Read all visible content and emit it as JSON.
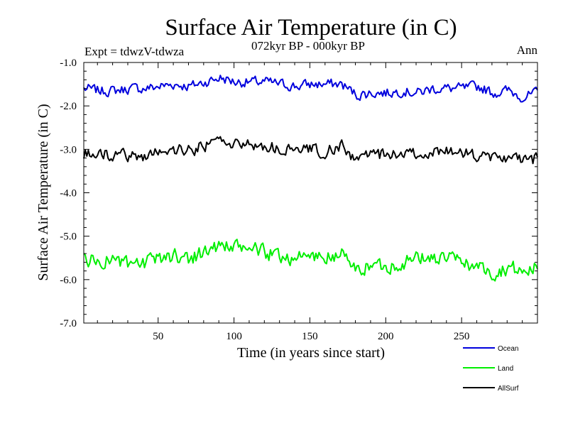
{
  "chart_data": {
    "type": "line",
    "title": "Surface Air Temperature (in C)",
    "subtitle": "072kyr BP - 000kyr BP",
    "left_label": "Expt = tdwzV-tdwza",
    "right_label": "Ann",
    "xlabel": "Time (in years since start)",
    "ylabel": "Surface Air Temperature (in C)",
    "xlim": [
      1,
      300
    ],
    "ylim": [
      -7.0,
      -1.0
    ],
    "x_ticks": [
      50,
      100,
      150,
      200,
      250
    ],
    "x_tick_labels": [
      "50",
      "100",
      "150",
      "200",
      "250"
    ],
    "y_ticks": [
      -1.0,
      -2.0,
      -3.0,
      -4.0,
      -5.0,
      -6.0,
      -7.0
    ],
    "y_tick_labels": [
      "-1.0",
      "-2.0",
      "-3.0",
      "-4.0",
      "-5.0",
      "-6.0",
      "-7.0"
    ],
    "grid": false,
    "legend_position": "bottom-right",
    "x": [
      1,
      11,
      21,
      31,
      41,
      51,
      61,
      71,
      81,
      91,
      101,
      111,
      121,
      131,
      141,
      151,
      161,
      171,
      181,
      191,
      201,
      211,
      221,
      231,
      241,
      251,
      261,
      271,
      281,
      291,
      300
    ],
    "series": [
      {
        "name": "Ocean",
        "color": "#0000dd",
        "values": [
          -1.6,
          -1.65,
          -1.65,
          -1.6,
          -1.6,
          -1.55,
          -1.5,
          -1.55,
          -1.45,
          -1.35,
          -1.45,
          -1.45,
          -1.45,
          -1.5,
          -1.55,
          -1.5,
          -1.5,
          -1.5,
          -1.75,
          -1.7,
          -1.7,
          -1.65,
          -1.7,
          -1.6,
          -1.6,
          -1.6,
          -1.55,
          -1.7,
          -1.65,
          -1.8,
          -1.7
        ]
      },
      {
        "name": "Land",
        "color": "#00ee00",
        "values": [
          -5.5,
          -5.6,
          -5.5,
          -5.7,
          -5.65,
          -5.5,
          -5.45,
          -5.5,
          -5.35,
          -5.2,
          -5.3,
          -5.25,
          -5.4,
          -5.45,
          -5.5,
          -5.45,
          -5.5,
          -5.4,
          -5.8,
          -5.65,
          -5.7,
          -5.6,
          -5.5,
          -5.5,
          -5.5,
          -5.6,
          -5.7,
          -5.85,
          -5.7,
          -5.85,
          -5.7
        ]
      },
      {
        "name": "AllSurf",
        "color": "#000000",
        "values": [
          -3.1,
          -3.15,
          -3.1,
          -3.15,
          -3.15,
          -3.05,
          -3.0,
          -3.05,
          -2.9,
          -2.8,
          -2.9,
          -2.85,
          -2.95,
          -3.0,
          -3.05,
          -3.0,
          -3.05,
          -2.95,
          -3.25,
          -3.1,
          -3.15,
          -3.1,
          -3.1,
          -3.05,
          -3.05,
          -3.1,
          -3.15,
          -3.25,
          -3.15,
          -3.3,
          -3.2
        ]
      }
    ]
  }
}
